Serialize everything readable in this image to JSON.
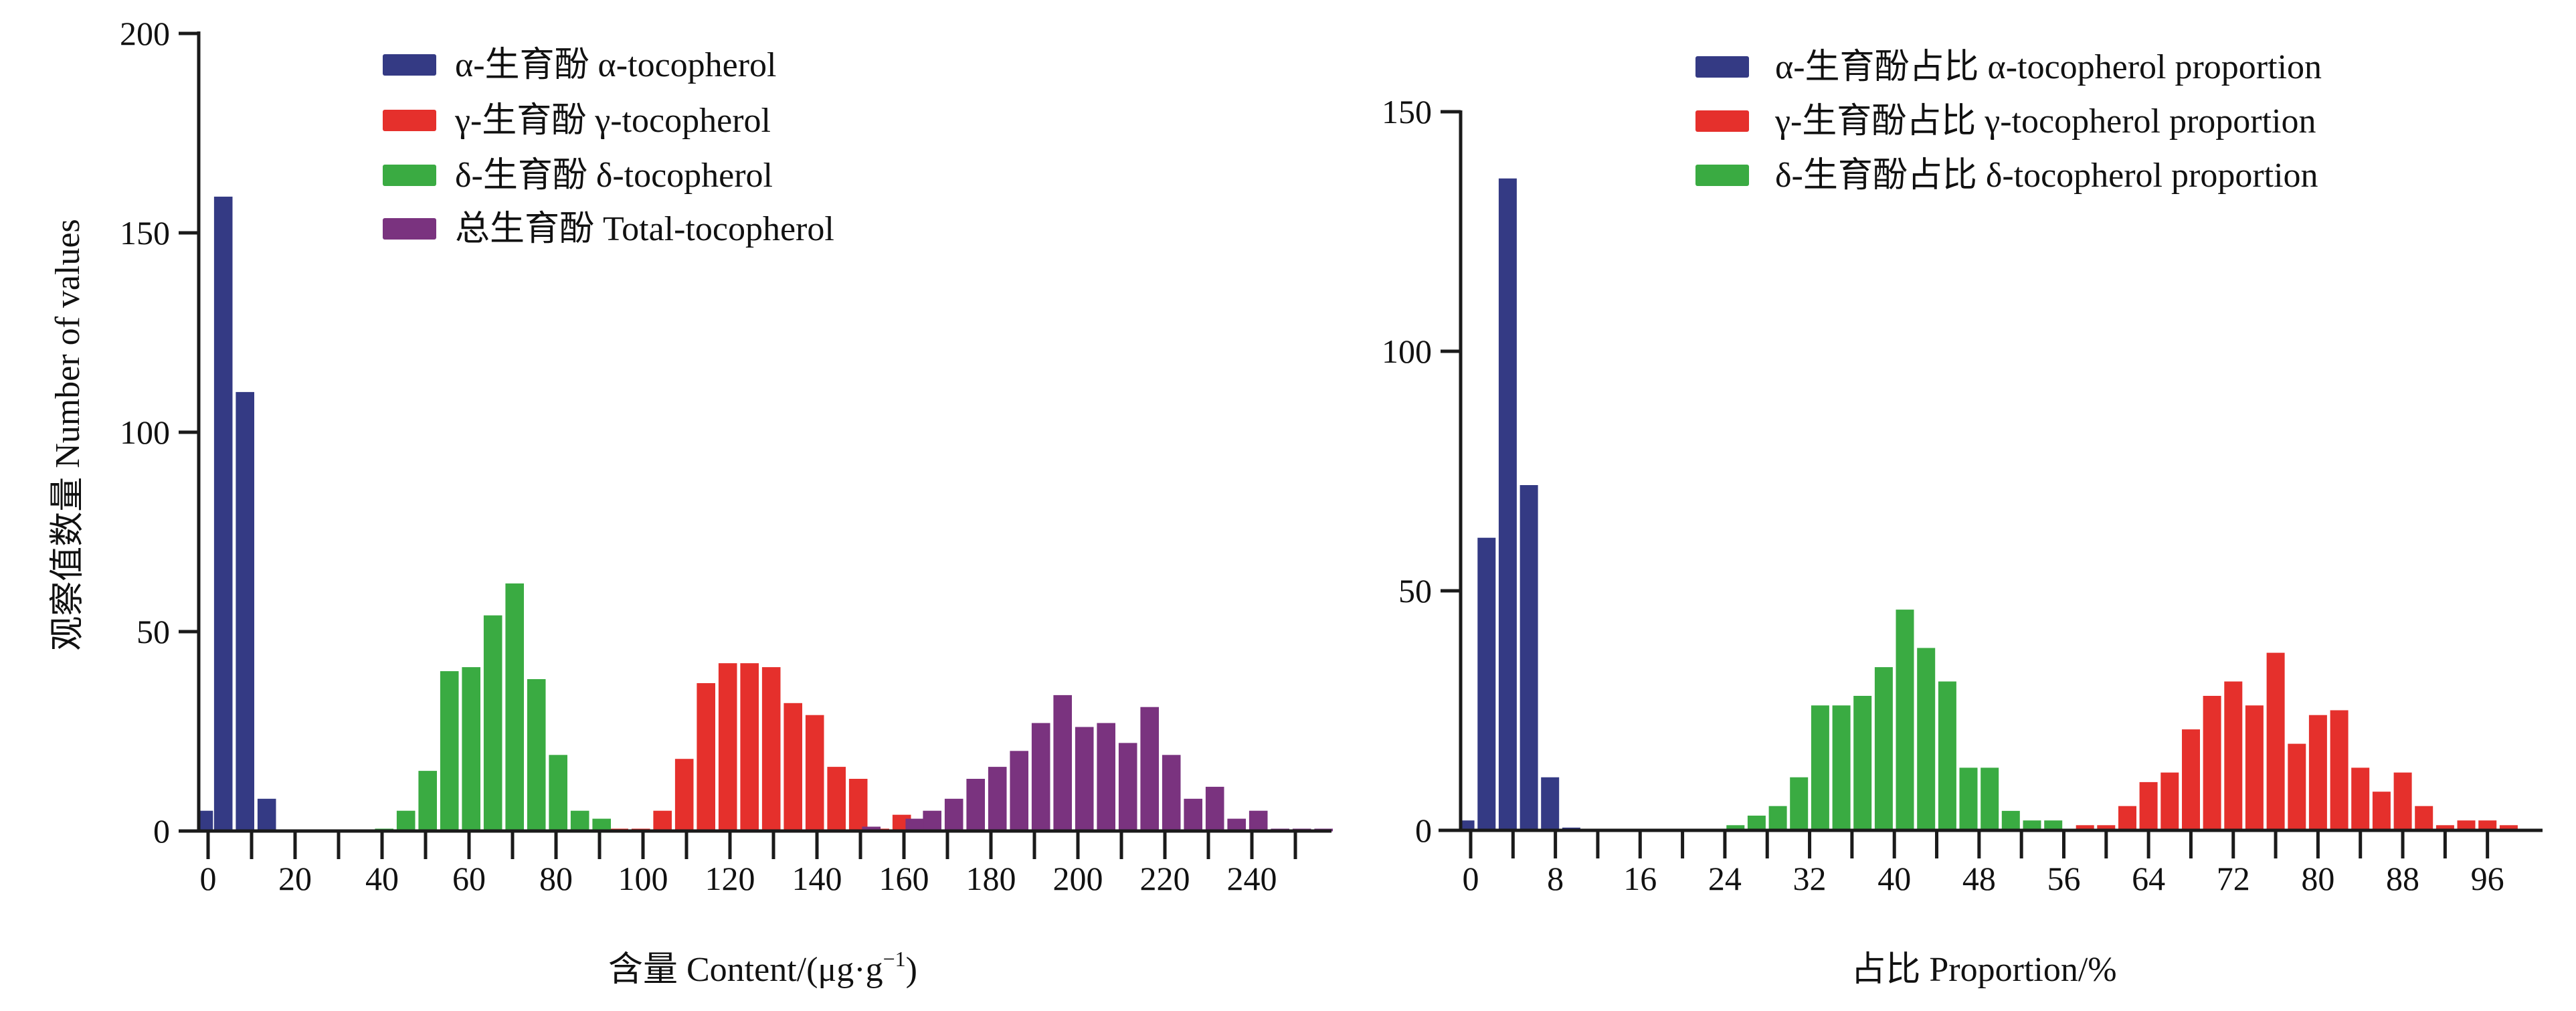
{
  "chart_data": [
    {
      "type": "bar",
      "subtype": "histogram",
      "xlabel": "含量 Content/(μg·g⁻¹)",
      "xlabel_main": "含量 Content/(μg·g",
      "xlabel_sup": "−1",
      "xlabel_tail": ")",
      "ylabel": "观察值数量 Number of values",
      "xlim": [
        -3,
        257
      ],
      "ylim": [
        0,
        200
      ],
      "x_ticks_minor": [
        0,
        10,
        20,
        30,
        40,
        50,
        60,
        70,
        80,
        90,
        100,
        110,
        120,
        130,
        140,
        150,
        160,
        170,
        180,
        190,
        200,
        210,
        220,
        230,
        240,
        250
      ],
      "x_tick_labels": [
        "0",
        "20",
        "40",
        "60",
        "80",
        "100",
        "120",
        "140",
        "160",
        "180",
        "200",
        "220",
        "240"
      ],
      "x_tick_label_values": [
        0,
        20,
        40,
        60,
        80,
        100,
        120,
        140,
        160,
        180,
        200,
        220,
        240
      ],
      "y_ticks": [
        0,
        50,
        100,
        150,
        200
      ],
      "y_tick_labels": [
        "0",
        "50",
        "100",
        "150",
        "200"
      ],
      "bin_width": 5,
      "legend_position": "top-center",
      "grid": false,
      "series": [
        {
          "name": "α-生育酚 α-tocopherol",
          "color": "#343a84",
          "x": [
            -1,
            3.5,
            8.5,
            13.5
          ],
          "values": [
            5,
            159,
            110,
            8
          ]
        },
        {
          "name": "γ-生育酚 γ-tocopherol",
          "color": "#e5302c",
          "x": [
            94.5,
            99.5,
            104.5,
            109.5,
            114.5,
            119.5,
            124.5,
            129.5,
            134.5,
            139.5,
            144.5,
            149.5,
            154.5,
            159.5
          ],
          "values": [
            0.5,
            0.5,
            5,
            18,
            37,
            42,
            42,
            41,
            32,
            29,
            16,
            13,
            0.5,
            4
          ]
        },
        {
          "name": "δ-生育酚 δ-tocopherol",
          "color": "#3aab42",
          "x": [
            40.5,
            45.5,
            50.5,
            55.5,
            60.5,
            65.5,
            70.5,
            75.5,
            80.5,
            85.5,
            90.5
          ],
          "values": [
            0.5,
            5,
            15,
            40,
            41,
            54,
            62,
            38,
            19,
            5,
            3
          ]
        },
        {
          "name": "总生育酚 Total-tocopherol",
          "color": "#7a337f",
          "x": [
            152.5,
            162.5,
            166.5,
            171.5,
            176.5,
            181.5,
            186.5,
            191.5,
            196.5,
            201.5,
            206.5,
            211.5,
            216.5,
            221.5,
            226.5,
            231.5,
            236.5,
            241.5,
            246.5,
            251.5,
            256.5
          ],
          "values": [
            1,
            3,
            5,
            8,
            13,
            16,
            20,
            27,
            34,
            26,
            27,
            22,
            31,
            19,
            8,
            11,
            3,
            5,
            0.5,
            0.5,
            0.5
          ]
        }
      ]
    },
    {
      "type": "bar",
      "subtype": "histogram",
      "xlabel": "占比 Proportion/%",
      "ylabel": "",
      "xlim": [
        -2,
        100
      ],
      "ylim": [
        0,
        150
      ],
      "x_ticks_minor": [
        0,
        4,
        8,
        12,
        16,
        20,
        24,
        28,
        32,
        36,
        40,
        44,
        48,
        52,
        56,
        60,
        64,
        68,
        72,
        76,
        80,
        84,
        88,
        92,
        96
      ],
      "x_tick_labels": [
        "0",
        "8",
        "16",
        "24",
        "32",
        "40",
        "48",
        "56",
        "64",
        "72",
        "80",
        "88",
        "96"
      ],
      "x_tick_label_values": [
        0,
        8,
        16,
        24,
        32,
        40,
        48,
        56,
        64,
        72,
        80,
        88,
        96
      ],
      "y_ticks": [
        0,
        50,
        100,
        150
      ],
      "y_tick_labels": [
        "0",
        "50",
        "100",
        "150"
      ],
      "bin_width": 2,
      "legend_position": "top-right",
      "grid": false,
      "series": [
        {
          "name": "α-生育酚占比 α-tocopherol proportion",
          "color": "#343a84",
          "x": [
            -0.5,
            1.5,
            3.5,
            5.5,
            7.5,
            9.5
          ],
          "values": [
            2,
            61,
            136,
            72,
            11,
            0.5
          ]
        },
        {
          "name": "γ-生育酚占比 γ-tocopherol proportion",
          "color": "#e5302c",
          "x": [
            58,
            60,
            62,
            64,
            66,
            68,
            70,
            72,
            74,
            76,
            78,
            80,
            82,
            84,
            86,
            88,
            90,
            92,
            94,
            96,
            98
          ],
          "values": [
            1,
            1,
            5,
            10,
            12,
            21,
            28,
            31,
            26,
            37,
            18,
            24,
            25,
            13,
            8,
            12,
            5,
            1,
            2,
            2,
            1
          ]
        },
        {
          "name": "δ-生育酚占比 δ-tocopherol proportion",
          "color": "#3aab42",
          "x": [
            25,
            27,
            29,
            31,
            33,
            35,
            37,
            39,
            41,
            43,
            45,
            47,
            49,
            51,
            53,
            55
          ],
          "values": [
            1,
            3,
            5,
            11,
            26,
            26,
            28,
            34,
            46,
            38,
            31,
            13,
            13,
            4,
            2,
            2
          ]
        }
      ]
    }
  ]
}
